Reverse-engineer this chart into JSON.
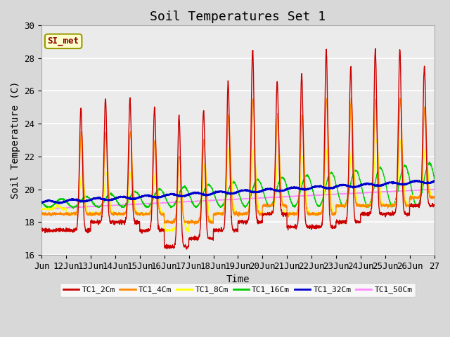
{
  "title": "Soil Temperatures Set 1",
  "xlabel": "Time",
  "ylabel": "Soil Temperature (C)",
  "ylim": [
    16,
    30
  ],
  "xlim": [
    0,
    16
  ],
  "annotation": "SI_met",
  "legend_entries": [
    "TC1_2Cm",
    "TC1_4Cm",
    "TC1_8Cm",
    "TC1_16Cm",
    "TC1_32Cm",
    "TC1_50Cm"
  ],
  "legend_colors": [
    "#cc0000",
    "#ff8800",
    "#ffff00",
    "#00cc00",
    "#0000cc",
    "#ff88ff"
  ],
  "tick_labels": [
    "Jun",
    "12Jun",
    "13Jun",
    "14Jun",
    "15Jun",
    "16Jun",
    "17Jun",
    "18Jun",
    "19Jun",
    "20Jun",
    "21Jun",
    "22Jun",
    "23Jun",
    "24Jun",
    "25Jun",
    "26Jun",
    "27"
  ],
  "title_fontsize": 13,
  "axis_fontsize": 10,
  "tick_fontsize": 9
}
